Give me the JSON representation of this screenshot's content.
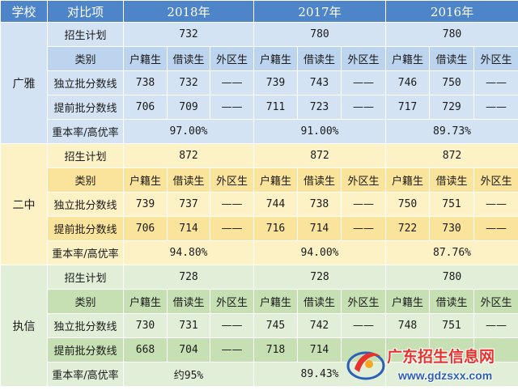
{
  "header": {
    "school": "学校",
    "item": "对比项",
    "years": [
      "2018年",
      "2017年",
      "2016年"
    ]
  },
  "subheaders": [
    "户籍生",
    "借读生",
    "外区生"
  ],
  "row_labels": {
    "plan": "招生计划",
    "category": "类别",
    "independent": "独立批分数线",
    "early": "提前批分数线",
    "rate": "重本率/高优率"
  },
  "dash": "——",
  "schools": [
    {
      "name": "广雅",
      "plan": [
        "732",
        "780",
        "780"
      ],
      "independent": [
        [
          "738",
          "732",
          "——"
        ],
        [
          "739",
          "743",
          "——"
        ],
        [
          "746",
          "750",
          "——"
        ]
      ],
      "early": [
        [
          "706",
          "709",
          "——"
        ],
        [
          "711",
          "723",
          "——"
        ],
        [
          "717",
          "729",
          "——"
        ]
      ],
      "rate": [
        "97.00%",
        "91.00%",
        "89.73%"
      ]
    },
    {
      "name": "二中",
      "plan": [
        "872",
        "872",
        "872"
      ],
      "independent": [
        [
          "739",
          "737",
          "——"
        ],
        [
          "744",
          "738",
          "——"
        ],
        [
          "750",
          "751",
          "——"
        ]
      ],
      "early": [
        [
          "706",
          "714",
          "——"
        ],
        [
          "716",
          "714",
          "——"
        ],
        [
          "722",
          "730",
          "——"
        ]
      ],
      "rate": [
        "94.80%",
        "94.00%",
        "87.76%"
      ]
    },
    {
      "name": "执信",
      "plan": [
        "728",
        "728",
        "780"
      ],
      "independent": [
        [
          "730",
          "731",
          "——"
        ],
        [
          "745",
          "742",
          "——"
        ],
        [
          "748",
          "751",
          "——"
        ]
      ],
      "early": [
        [
          "668",
          "704",
          "——"
        ],
        [
          "718",
          "714",
          ""
        ],
        [
          "",
          "",
          ""
        ]
      ],
      "rate": [
        "约95%",
        "89.43%",
        ""
      ]
    }
  ],
  "watermark": {
    "title": "广东招生信息网",
    "url": "www.gdzsxx.com"
  },
  "colors": {
    "header": "#4e85c8",
    "guangya_light": "#d4e3f4",
    "guangya_dark": "#bcd4ee",
    "erzhong_light": "#fdf1c6",
    "erzhong_dark": "#fae39a",
    "zhixin_light": "#e1efd9",
    "zhixin_dark": "#c6e0b4"
  }
}
